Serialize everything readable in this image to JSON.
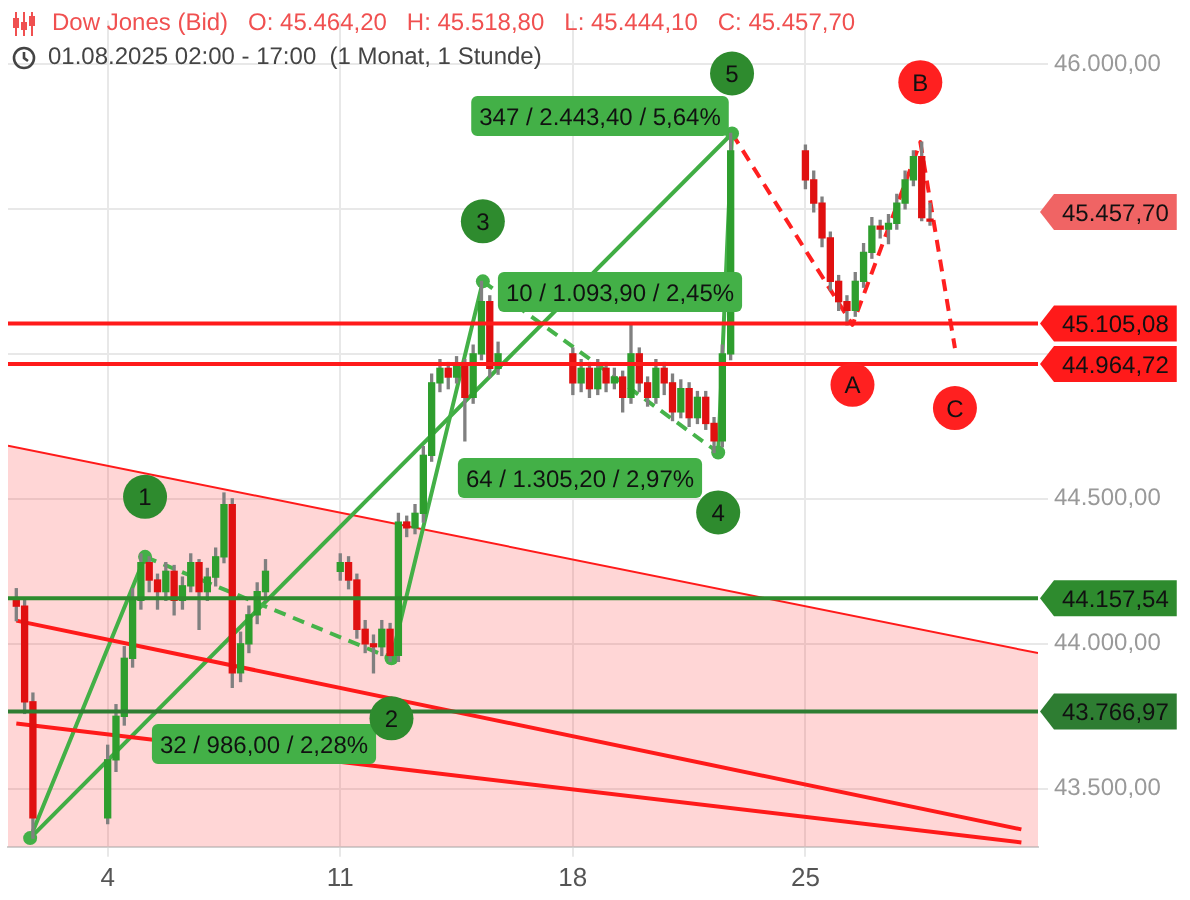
{
  "chart_data": {
    "type": "candlestick",
    "title": "Dow Jones (Bid)   O: 45.464,20   H: 45.518,80   L: 45.444,10   C: 45.457,70",
    "subtitle": "01.08.2025 02:00 - 17:00  (1 Monat, 1 Stunde)",
    "x": [
      "2025-08-01T06:00",
      "2025-08-01T12:00",
      "2025-08-01T18:00",
      "2025-08-04T00:00",
      "2025-08-04T06:00",
      "2025-08-04T12:00",
      "2025-08-04T18:00",
      "2025-08-05T00:00",
      "2025-08-05T06:00",
      "2025-08-05T12:00",
      "2025-08-05T18:00",
      "2025-08-06T00:00",
      "2025-08-06T06:00",
      "2025-08-06T12:00",
      "2025-08-06T18:00",
      "2025-08-07T00:00",
      "2025-08-07T06:00",
      "2025-08-07T12:00",
      "2025-08-07T18:00",
      "2025-08-08T00:00",
      "2025-08-08T06:00",
      "2025-08-08T12:00",
      "2025-08-08T18:00",
      "2025-08-11T00:00",
      "2025-08-11T06:00",
      "2025-08-11T12:00",
      "2025-08-11T18:00",
      "2025-08-12T00:00",
      "2025-08-12T06:00",
      "2025-08-12T12:00",
      "2025-08-12T18:00",
      "2025-08-13T00:00",
      "2025-08-13T06:00",
      "2025-08-13T12:00",
      "2025-08-13T18:00",
      "2025-08-14T00:00",
      "2025-08-14T06:00",
      "2025-08-14T12:00",
      "2025-08-14T18:00",
      "2025-08-15T00:00",
      "2025-08-15T06:00",
      "2025-08-15T12:00",
      "2025-08-15T18:00",
      "2025-08-18T00:00",
      "2025-08-18T06:00",
      "2025-08-18T12:00",
      "2025-08-18T18:00",
      "2025-08-19T00:00",
      "2025-08-19T06:00",
      "2025-08-19T12:00",
      "2025-08-19T18:00",
      "2025-08-20T00:00",
      "2025-08-20T06:00",
      "2025-08-20T12:00",
      "2025-08-20T18:00",
      "2025-08-21T00:00",
      "2025-08-21T06:00",
      "2025-08-21T12:00",
      "2025-08-21T18:00",
      "2025-08-22T00:00",
      "2025-08-22T06:00",
      "2025-08-22T12:00",
      "2025-08-22T18:00",
      "2025-08-25T00:00",
      "2025-08-25T06:00",
      "2025-08-25T12:00",
      "2025-08-25T18:00",
      "2025-08-26T00:00",
      "2025-08-26T06:00",
      "2025-08-26T12:00",
      "2025-08-26T18:00",
      "2025-08-27T00:00",
      "2025-08-27T06:00",
      "2025-08-27T12:00",
      "2025-08-27T18:00",
      "2025-08-28T00:00",
      "2025-08-28T06:00",
      "2025-08-28T12:00",
      "2025-08-28T18:00"
    ],
    "ohlc": [
      [
        44150,
        44190,
        44080,
        44130
      ],
      [
        44130,
        44150,
        43760,
        43800
      ],
      [
        43800,
        43830,
        43330,
        43400
      ],
      [
        43400,
        43650,
        43380,
        43600
      ],
      [
        43600,
        43790,
        43560,
        43750
      ],
      [
        43750,
        43990,
        43720,
        43950
      ],
      [
        43950,
        44190,
        43920,
        44150
      ],
      [
        44150,
        44310,
        44120,
        44280
      ],
      [
        44280,
        44300,
        44180,
        44220
      ],
      [
        44220,
        44240,
        44120,
        44180
      ],
      [
        44180,
        44280,
        44150,
        44250
      ],
      [
        44250,
        44270,
        44100,
        44150
      ],
      [
        44150,
        44230,
        44120,
        44200
      ],
      [
        44200,
        44310,
        44180,
        44280
      ],
      [
        44280,
        44290,
        44050,
        44180
      ],
      [
        44180,
        44260,
        44150,
        44230
      ],
      [
        44230,
        44330,
        44200,
        44300
      ],
      [
        44300,
        44520,
        44280,
        44480
      ],
      [
        44480,
        44500,
        43850,
        43900
      ],
      [
        43900,
        44040,
        43870,
        44000
      ],
      [
        44000,
        44130,
        43970,
        44100
      ],
      [
        44100,
        44210,
        44070,
        44180
      ],
      [
        44180,
        44290,
        44150,
        44250
      ],
      [
        44250,
        44310,
        44220,
        44280
      ],
      [
        44280,
        44300,
        44190,
        44220
      ],
      [
        44220,
        44240,
        44020,
        44050
      ],
      [
        44050,
        44080,
        43970,
        44000
      ],
      [
        44000,
        44030,
        43900,
        43990
      ],
      [
        43990,
        44080,
        43960,
        44050
      ],
      [
        44050,
        44070,
        43940,
        43960
      ],
      [
        43960,
        44450,
        43940,
        44420
      ],
      [
        44420,
        44440,
        44370,
        44400
      ],
      [
        44400,
        44480,
        44380,
        44450
      ],
      [
        44450,
        44680,
        44420,
        44650
      ],
      [
        44650,
        44930,
        44630,
        44900
      ],
      [
        44900,
        44980,
        44870,
        44950
      ],
      [
        44950,
        44970,
        44880,
        44920
      ],
      [
        44920,
        44990,
        44900,
        44960
      ],
      [
        44960,
        44980,
        44700,
        44850
      ],
      [
        44850,
        45030,
        44830,
        45000
      ],
      [
        45000,
        45250,
        44980,
        45180
      ],
      [
        45180,
        45200,
        44920,
        44950
      ],
      [
        44950,
        45040,
        44930,
        45000
      ],
      [
        45000,
        45020,
        44860,
        44900
      ],
      [
        44900,
        44980,
        44870,
        44950
      ],
      [
        44950,
        44970,
        44850,
        44880
      ],
      [
        44880,
        44980,
        44860,
        44950
      ],
      [
        44950,
        44970,
        44870,
        44900
      ],
      [
        44900,
        44950,
        44880,
        44920
      ],
      [
        44920,
        44940,
        44800,
        44850
      ],
      [
        44850,
        45100,
        44830,
        45000
      ],
      [
        45000,
        45020,
        44870,
        44900
      ],
      [
        44900,
        44920,
        44820,
        44850
      ],
      [
        44850,
        44980,
        44830,
        44950
      ],
      [
        44950,
        44970,
        44860,
        44900
      ],
      [
        44900,
        44930,
        44770,
        44800
      ],
      [
        44800,
        44910,
        44780,
        44880
      ],
      [
        44880,
        44900,
        44750,
        44780
      ],
      [
        44780,
        44870,
        44760,
        44850
      ],
      [
        44850,
        44870,
        44740,
        44760
      ],
      [
        44760,
        44780,
        44660,
        44700
      ],
      [
        44700,
        45030,
        44680,
        45000
      ],
      [
        45000,
        45760,
        44980,
        45700
      ],
      [
        45700,
        45720,
        45570,
        45600
      ],
      [
        45600,
        45630,
        45490,
        45520
      ],
      [
        45520,
        45540,
        45370,
        45400
      ],
      [
        45400,
        45420,
        45220,
        45250
      ],
      [
        45250,
        45270,
        45150,
        45180
      ],
      [
        45180,
        45200,
        45100,
        45150
      ],
      [
        45150,
        45280,
        45130,
        45250
      ],
      [
        45250,
        45380,
        45230,
        45350
      ],
      [
        45350,
        45470,
        45330,
        45440
      ],
      [
        45440,
        45460,
        45400,
        45430
      ],
      [
        45430,
        45480,
        45380,
        45450
      ],
      [
        45450,
        45550,
        45430,
        45520
      ],
      [
        45520,
        45630,
        45500,
        45600
      ],
      [
        45600,
        45700,
        45580,
        45680
      ],
      [
        45680,
        45730,
        45460,
        45470
      ],
      [
        45464.2,
        45518.8,
        45444.1,
        45457.7
      ]
    ],
    "series": [
      {
        "type": "area",
        "color": "#ff1a1a",
        "x": [
          "2025-08-01T00:00",
          "2025-09-01T00:00"
        ],
        "values": [
          44683,
          43968
        ]
      },
      {
        "type": "line",
        "color": "#ff1a1a",
        "x": [
          "2025-08-01T06:00",
          "2025-08-31T12:00"
        ],
        "values": [
          44080,
          43360
        ]
      },
      {
        "type": "line",
        "color": "#ff1a1a",
        "x": [
          "2025-08-01T06:00",
          "2025-08-31T12:00"
        ],
        "values": [
          43725,
          43315
        ]
      },
      {
        "type": "line",
        "color": "#43b047",
        "marker": "circle",
        "x": [
          "2025-08-01T16:00",
          "2025-08-05T03:00",
          "2025-08-07T19:00",
          "2025-08-12T13:00",
          "2025-08-15T07:00",
          "2025-08-19T19:00",
          "2025-08-22T09:00",
          "2025-08-22T19:00"
        ],
        "values": [
          43330,
          44300,
          null,
          43950,
          45250,
          null,
          44660,
          45760
        ]
      },
      {
        "type": "line",
        "color": "#46b34a",
        "line_style": "dashed",
        "x": [
          "2025-08-05T03:00",
          "2025-08-12T13:00",
          "2025-08-13T22:00",
          "2025-08-15T07:00",
          "2025-08-22T09:00"
        ],
        "values": [
          44300,
          43950,
          null,
          45250,
          44660
        ]
      },
      {
        "type": "line",
        "color": "#40ad44",
        "x": [
          "2025-08-01T16:00",
          "2025-08-22T19:00"
        ],
        "values": [
          43330,
          45760
        ]
      },
      {
        "type": "line",
        "color": "#ff2020",
        "line_style": "dashed",
        "x": [
          "2025-08-22T19:00",
          "2025-08-26T10:00",
          "2025-08-28T11:00",
          "2025-08-29T12:00"
        ],
        "values": [
          45760,
          45100,
          45730,
          45020
        ]
      }
    ],
    "xlim": [
      "2025-08-01T00:00",
      "2025-09-01T00:00"
    ],
    "xticks": [
      {
        "value": "2025-08-04",
        "label": "4"
      },
      {
        "value": "2025-08-11",
        "label": "11"
      },
      {
        "value": "2025-08-18",
        "label": "18"
      },
      {
        "value": "2025-08-25",
        "label": "25"
      }
    ],
    "ylim": [
      43300,
      46150
    ],
    "yticks": [
      {
        "value": 43500,
        "label": "43.500,00"
      },
      {
        "value": 44000,
        "label": "44.000,00"
      },
      {
        "value": 44500,
        "label": "44.500,00"
      },
      {
        "value": 45000,
        "label": null
      },
      {
        "value": 45500,
        "label": null
      },
      {
        "value": 46000,
        "label": "46.000,00"
      }
    ],
    "ref_lines": [
      {
        "axis": "y",
        "value": 45105.08,
        "label": "45.105,08",
        "color": "#ff1a1a"
      },
      {
        "axis": "y",
        "value": 44964.72,
        "label": "44.964,72",
        "color": "#ff1a1a"
      },
      {
        "axis": "y",
        "value": 44157.54,
        "label": "44.157,54",
        "color": "#2e8b2e"
      },
      {
        "axis": "y",
        "value": 43766.97,
        "label": "43.766,97",
        "color": "#2e7d32"
      }
    ],
    "annotations": [
      "32 / 986,00 / 2,28%",
      "10 / 1.093,90 / 2,45%",
      "347 / 2.443,40 / 5,64%",
      "64 / 1.305,20 / 2,97%",
      {
        "text": "1",
        "x": "2025-08-05T03:00",
        "y": 44300
      },
      {
        "text": "2",
        "x": "2025-08-12T13:00",
        "y": 43950
      },
      {
        "text": "3",
        "x": "2025-08-15T07:00",
        "y": 45250
      },
      {
        "text": "4",
        "x": "2025-08-22T09:00",
        "y": 44660
      },
      {
        "text": "5",
        "x": "2025-08-22T19:00",
        "y": 45760
      },
      {
        "text": "A",
        "x": "2025-08-26T10:00",
        "y": 45100
      },
      {
        "text": "B",
        "x": "2025-08-28T11:00",
        "y": 45730
      },
      {
        "text": "C",
        "x": "2025-08-29T12:00",
        "y": 45020
      },
      "45.457,70"
    ],
    "grid": true,
    "legend": false
  }
}
